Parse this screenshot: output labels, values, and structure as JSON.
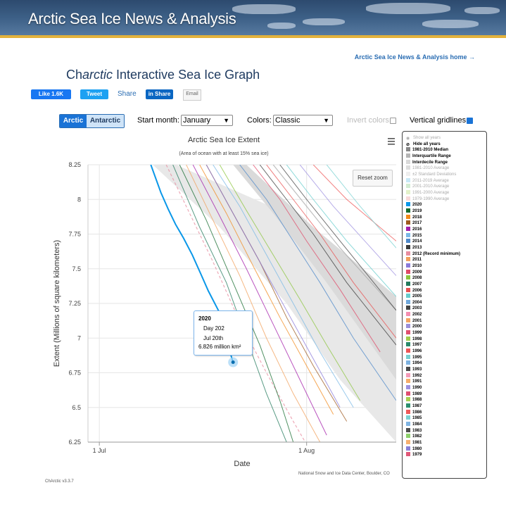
{
  "header": {
    "title": "Arctic Sea Ice News & Analysis",
    "home_link": "Arctic Sea Ice News & Analysis home →"
  },
  "app": {
    "title_pre": "Ch",
    "title_italic": "arctic",
    "title_post": " Interactive Sea Ice Graph"
  },
  "social": {
    "like": "Like 1.6K",
    "tweet": "Tweet",
    "share": "Share",
    "linkedin": "in Share",
    "email": "Email"
  },
  "controls": {
    "hemisphere_arctic": "Arctic",
    "hemisphere_antarctic": "Antarctic",
    "start_month_label": "Start month:",
    "start_month_value": "January",
    "colors_label": "Colors:",
    "colors_value": "Classic",
    "invert_label": "Invert colors",
    "invert_checked": false,
    "vgrid_label": "Vertical gridlines",
    "vgrid_checked": true
  },
  "chart_ui": {
    "reset_zoom": "Reset zoom",
    "menu_icon": "hamburger-icon"
  },
  "tooltip": {
    "year": "2020",
    "day": "Day 202",
    "date": "Jul 20th",
    "value": "6.826 million km²"
  },
  "footer": {
    "source": "National Snow and Ice Data Center, Boulder, CO",
    "version": "ChArctic v3.3.7"
  },
  "legend": [
    {
      "label": "Show all years",
      "color": "",
      "style": "dim-icon"
    },
    {
      "label": "Hide all years",
      "color": "",
      "style": "icon"
    },
    {
      "label": "1981-2010 Median",
      "color": "#888888",
      "style": "bold"
    },
    {
      "label": "Interquartile Range",
      "color": "#b5b5b5",
      "style": "bold"
    },
    {
      "label": "Interdecile Range",
      "color": "#d9d9d9",
      "style": "bold"
    },
    {
      "label": "1981-2010 Average",
      "color": "#dddddd",
      "style": "dim"
    },
    {
      "label": "±2 Standard Deviations",
      "color": "#eeeeee",
      "style": "dim"
    },
    {
      "label": "2011-2019 Average",
      "color": "#c8e8f6",
      "style": "dim"
    },
    {
      "label": "2001-2010 Average",
      "color": "#d2ecd2",
      "style": "dim"
    },
    {
      "label": "1991-2000 Average",
      "color": "#e2f1c9",
      "style": "dim"
    },
    {
      "label": "1979-1990 Average",
      "color": "#f7d9d9",
      "style": "dim"
    },
    {
      "label": "2020",
      "color": "#0a97e8",
      "style": "bold"
    },
    {
      "label": "2019",
      "color": "#146b2e",
      "style": "bold"
    },
    {
      "label": "2018",
      "color": "#f28a1c",
      "style": "bold"
    },
    {
      "label": "2017",
      "color": "#9e5a1f",
      "style": "bold"
    },
    {
      "label": "2016",
      "color": "#a31caa",
      "style": "bold"
    },
    {
      "label": "2015",
      "color": "#7ab8e6",
      "style": "bold"
    },
    {
      "label": "2014",
      "color": "#4d88c9",
      "style": "bold"
    },
    {
      "label": "2013",
      "color": "#3b3b3b",
      "style": "bold"
    },
    {
      "label": "2012 (Record minimum)",
      "color": "#e88ea0",
      "style": "bold"
    },
    {
      "label": "2011",
      "color": "#f2a05b",
      "style": "bold"
    },
    {
      "label": "2010",
      "color": "#8a7ad9",
      "style": "bold"
    },
    {
      "label": "2009",
      "color": "#e04b6a",
      "style": "bold"
    },
    {
      "label": "2008",
      "color": "#8cc63f",
      "style": "bold"
    },
    {
      "label": "2007",
      "color": "#237a5c",
      "style": "bold"
    },
    {
      "label": "2006",
      "color": "#e85050",
      "style": "bold"
    },
    {
      "label": "2005",
      "color": "#66cccc",
      "style": "bold"
    },
    {
      "label": "2004",
      "color": "#6fa8dc",
      "style": "bold"
    },
    {
      "label": "2003",
      "color": "#444444",
      "style": "bold"
    },
    {
      "label": "2002",
      "color": "#f48fb1",
      "style": "bold"
    },
    {
      "label": "2001",
      "color": "#f4a460",
      "style": "bold"
    },
    {
      "label": "2000",
      "color": "#9b8fd9",
      "style": "bold"
    },
    {
      "label": "1999",
      "color": "#e05070",
      "style": "bold"
    },
    {
      "label": "1998",
      "color": "#a2cc4a",
      "style": "bold"
    },
    {
      "label": "1997",
      "color": "#2a8a6a",
      "style": "bold"
    },
    {
      "label": "1996",
      "color": "#ee5555",
      "style": "bold"
    },
    {
      "label": "1995",
      "color": "#77d0d0",
      "style": "bold"
    },
    {
      "label": "1994",
      "color": "#7eb2e0",
      "style": "bold"
    },
    {
      "label": "1993",
      "color": "#4a4a4a",
      "style": "bold"
    },
    {
      "label": "1992",
      "color": "#f39ab8",
      "style": "bold"
    },
    {
      "label": "1991",
      "color": "#f5ad6a",
      "style": "bold"
    },
    {
      "label": "1990",
      "color": "#9d90e0",
      "style": "bold"
    },
    {
      "label": "1989",
      "color": "#df4f73",
      "style": "bold"
    },
    {
      "label": "1988",
      "color": "#a8d050",
      "style": "bold"
    },
    {
      "label": "1987",
      "color": "#2c8f6f",
      "style": "bold"
    },
    {
      "label": "1986",
      "color": "#ef5a5a",
      "style": "bold"
    },
    {
      "label": "1985",
      "color": "#7ad2d2",
      "style": "bold"
    },
    {
      "label": "1984",
      "color": "#80b4e2",
      "style": "bold"
    },
    {
      "label": "1983",
      "color": "#4c4c4c",
      "style": "bold"
    },
    {
      "label": "1982",
      "color": "#8cd06a",
      "style": "bold"
    },
    {
      "label": "1981",
      "color": "#f6b070",
      "style": "bold"
    },
    {
      "label": "1980",
      "color": "#8880d8",
      "style": "bold"
    },
    {
      "label": "1979",
      "color": "#e05878",
      "style": "bold"
    }
  ],
  "chart_data": {
    "type": "line",
    "title": "Arctic Sea Ice Extent",
    "subtitle": "(Area of ocean with at least 15% sea ice)",
    "xlabel": "Date",
    "ylabel": "Extent (Millions of square kilometers)",
    "xlim": [
      180.3,
      226.4
    ],
    "ylim": [
      6.25,
      8.25
    ],
    "xticks": [
      {
        "day": 182,
        "label": "1 Jul"
      },
      {
        "day": 213,
        "label": "1 Aug"
      }
    ],
    "yticks": [
      6.25,
      6.5,
      6.75,
      7,
      7.25,
      7.5,
      7.75,
      8,
      8.25
    ],
    "vertical_gridlines": true,
    "bands": [
      {
        "name": "Interdecile Range",
        "color": "#e8e8e8",
        "upper": [
          [
            193.5,
            8.25
          ],
          [
            210,
            7.9
          ],
          [
            226.4,
            7.1
          ]
        ],
        "lower": [
          [
            190,
            8.25
          ],
          [
            200,
            7.8
          ],
          [
            210,
            7.25
          ],
          [
            218,
            6.7
          ],
          [
            226.4,
            6.25
          ]
        ]
      },
      {
        "name": "Interquartile Range",
        "color": "#dadada",
        "upper": [
          [
            204,
            8.25
          ],
          [
            214,
            7.8
          ],
          [
            226.4,
            7.3
          ]
        ],
        "lower": [
          [
            202,
            8.25
          ],
          [
            208,
            7.9
          ],
          [
            216,
            7.4
          ],
          [
            226.4,
            6.7
          ]
        ]
      }
    ],
    "series": [
      {
        "name": "1981-2010 Median",
        "color": "#aaaaaa",
        "width": 1.2,
        "points": [
          [
            208,
            8.25
          ],
          [
            213,
            7.95
          ],
          [
            218,
            7.65
          ],
          [
            226.4,
            7.2
          ]
        ]
      },
      {
        "name": "2020",
        "color": "#0a97e8",
        "width": 2,
        "points": [
          [
            189.7,
            8.25
          ],
          [
            191.2,
            8.05
          ],
          [
            192.3,
            7.93
          ],
          [
            193.4,
            7.82
          ],
          [
            194.6,
            7.72
          ],
          [
            195.9,
            7.6
          ],
          [
            197.2,
            7.46
          ],
          [
            198.3,
            7.34
          ],
          [
            199.8,
            7.2
          ],
          [
            200.6,
            7.05
          ],
          [
            202,
            6.826
          ]
        ]
      },
      {
        "name": "2012 (Record minimum)",
        "color": "#e88ea0",
        "width": 1.2,
        "dash": "4,3",
        "points": [
          [
            192,
            8.25
          ],
          [
            195,
            7.95
          ],
          [
            199,
            7.55
          ],
          [
            203,
            7.12
          ],
          [
            207,
            6.75
          ],
          [
            211,
            6.4
          ],
          [
            212.8,
            6.25
          ]
        ]
      },
      {
        "name": "2019",
        "color": "#146b2e",
        "width": 1,
        "points": [
          [
            194,
            8.25
          ],
          [
            198,
            7.85
          ],
          [
            202,
            7.4
          ],
          [
            206,
            6.95
          ],
          [
            209,
            6.55
          ],
          [
            211,
            6.25
          ]
        ]
      },
      {
        "name": "2011",
        "color": "#f2a05b",
        "width": 1,
        "points": [
          [
            195,
            8.25
          ],
          [
            199,
            7.85
          ],
          [
            203,
            7.45
          ],
          [
            207,
            7.0
          ],
          [
            211,
            6.6
          ],
          [
            215,
            6.25
          ]
        ]
      },
      {
        "name": "2007",
        "color": "#237a5c",
        "width": 1,
        "points": [
          [
            193,
            8.25
          ],
          [
            197,
            7.8
          ],
          [
            201,
            7.4
          ],
          [
            204,
            7.0
          ],
          [
            207,
            6.6
          ],
          [
            210,
            6.25
          ]
        ]
      },
      {
        "name": "2016",
        "color": "#a31caa",
        "width": 1,
        "points": [
          [
            196,
            8.25
          ],
          [
            200,
            7.88
          ],
          [
            204,
            7.5
          ],
          [
            208,
            7.1
          ],
          [
            212,
            6.7
          ],
          [
            216,
            6.3
          ]
        ]
      },
      {
        "name": "2017",
        "color": "#9e5a1f",
        "width": 1,
        "points": [
          [
            198,
            8.25
          ],
          [
            202,
            7.9
          ],
          [
            206,
            7.55
          ],
          [
            210,
            7.15
          ],
          [
            214,
            6.8
          ],
          [
            219,
            6.4
          ]
        ]
      },
      {
        "name": "2015",
        "color": "#7ab8e6",
        "width": 1,
        "points": [
          [
            199,
            8.25
          ],
          [
            203,
            7.95
          ],
          [
            207,
            7.6
          ],
          [
            211,
            7.25
          ],
          [
            215,
            6.9
          ],
          [
            220,
            6.5
          ]
        ]
      },
      {
        "name": "2014",
        "color": "#4d88c9",
        "width": 1,
        "points": [
          [
            203,
            8.25
          ],
          [
            207,
            8.0
          ],
          [
            211,
            7.7
          ],
          [
            215,
            7.4
          ],
          [
            220,
            7.0
          ],
          [
            226.4,
            6.55
          ]
        ]
      },
      {
        "name": "2013",
        "color": "#3b3b3b",
        "width": 1,
        "points": [
          [
            206,
            8.25
          ],
          [
            210,
            8.0
          ],
          [
            214,
            7.75
          ],
          [
            219,
            7.4
          ],
          [
            226.4,
            6.95
          ]
        ]
      },
      {
        "name": "2018",
        "color": "#f28a1c",
        "width": 1,
        "points": [
          [
            197,
            8.25
          ],
          [
            201,
            7.9
          ],
          [
            205,
            7.52
          ],
          [
            209,
            7.15
          ],
          [
            213,
            6.8
          ],
          [
            217,
            6.45
          ]
        ]
      },
      {
        "name": "2010",
        "color": "#8a7ad9",
        "width": 1,
        "points": [
          [
            198,
            8.25
          ],
          [
            202,
            7.9
          ],
          [
            206,
            7.55
          ],
          [
            210,
            7.2
          ],
          [
            214,
            6.85
          ],
          [
            218,
            6.5
          ]
        ]
      },
      {
        "name": "2008",
        "color": "#8cc63f",
        "width": 1,
        "points": [
          [
            200,
            8.25
          ],
          [
            204,
            7.92
          ],
          [
            208,
            7.6
          ],
          [
            212,
            7.28
          ],
          [
            216,
            6.95
          ],
          [
            221,
            6.55
          ]
        ]
      },
      {
        "name": "2006",
        "color": "#e85050",
        "width": 1,
        "points": [
          [
            207,
            8.25
          ],
          [
            211,
            8.0
          ],
          [
            215,
            7.75
          ],
          [
            220,
            7.4
          ],
          [
            226.4,
            7.0
          ]
        ]
      },
      {
        "name": "2009",
        "color": "#e04b6a",
        "width": 1,
        "points": [
          [
            205,
            8.25
          ],
          [
            209,
            8.0
          ],
          [
            213,
            7.7
          ],
          [
            218,
            7.35
          ],
          [
            224,
            6.9
          ]
        ]
      },
      {
        "name": "2005",
        "color": "#66cccc",
        "width": 1,
        "points": [
          [
            210,
            8.25
          ],
          [
            214,
            8.0
          ],
          [
            219,
            7.7
          ],
          [
            226.4,
            7.3
          ]
        ]
      },
      {
        "name": "1996",
        "color": "#ee5555",
        "width": 1,
        "points": [
          [
            214,
            8.25
          ],
          [
            219,
            8.0
          ],
          [
            226.4,
            7.7
          ]
        ]
      },
      {
        "name": "1990",
        "color": "#9d90e0",
        "width": 1,
        "points": [
          [
            212,
            8.25
          ],
          [
            217,
            7.95
          ],
          [
            226.4,
            7.45
          ]
        ]
      },
      {
        "name": "1985",
        "color": "#7ad2d2",
        "width": 1,
        "points": [
          [
            216,
            8.25
          ],
          [
            221,
            7.95
          ],
          [
            226.4,
            7.65
          ]
        ]
      },
      {
        "name": "2003",
        "color": "#444444",
        "width": 1,
        "points": [
          [
            209,
            8.25
          ],
          [
            213,
            8.0
          ],
          [
            218,
            7.7
          ],
          [
            226.4,
            7.2
          ]
        ]
      }
    ],
    "tooltip_point": {
      "series": "2020",
      "x": 202,
      "y": 6.826
    }
  }
}
